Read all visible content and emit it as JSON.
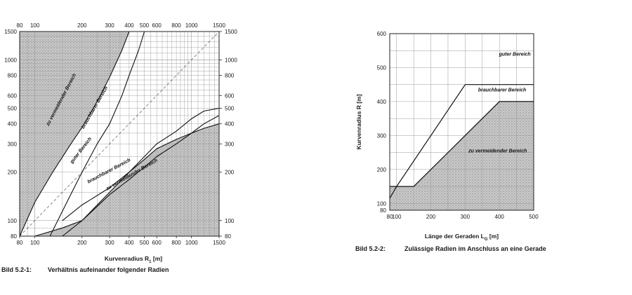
{
  "chart_data": [
    {
      "type": "area",
      "scale": "log-log",
      "xlabel": "Kurvenradius R",
      "xlabel_sub": "1",
      "xlabel_unit": " [m]",
      "ylabel": "",
      "xlim": [
        80,
        1500
      ],
      "ylim": [
        80,
        1500
      ],
      "x_ticks": [
        80,
        100,
        200,
        300,
        400,
        500,
        600,
        800,
        1000,
        1500
      ],
      "y_ticks": [
        80,
        100,
        200,
        300,
        400,
        500,
        600,
        800,
        1000,
        1500
      ],
      "grid": true,
      "caption_number": "Bild 5.2-1:",
      "caption_text": "Verhältnis aufeinander folgender Radien",
      "regions": [
        {
          "label": "zu vermeidender Bereich"
        },
        {
          "label": "brauchbarer Bereich"
        },
        {
          "label": "guter Bereich"
        },
        {
          "label": "brauchbarer Bereich"
        },
        {
          "label": "zu vermeidender Bereich"
        }
      ],
      "curves": [
        {
          "x": [
            80,
            100,
            130,
            170,
            200,
            250,
            300,
            360,
            400
          ],
          "y": [
            80,
            130,
            200,
            300,
            380,
            550,
            780,
            1150,
            1500
          ]
        },
        {
          "x": [
            125,
            160,
            200,
            250,
            300,
            360,
            400,
            460,
            500
          ],
          "y": [
            80,
            130,
            200,
            300,
            400,
            600,
            800,
            1150,
            1500
          ]
        },
        {
          "x": [
            150,
            200,
            300,
            400,
            500,
            600,
            800,
            1000,
            1200,
            1500
          ],
          "y": [
            80,
            100,
            145,
            180,
            215,
            250,
            300,
            350,
            400,
            450
          ]
        },
        {
          "x": [
            150,
            200,
            300,
            400,
            500,
            600,
            800,
            1000,
            1200,
            1500
          ],
          "y": [
            100,
            125,
            160,
            200,
            250,
            300,
            360,
            430,
            480,
            500
          ]
        },
        {
          "x": [
            80,
            100,
            150,
            200,
            300,
            400,
            500,
            600,
            800,
            1000,
            1200,
            1500
          ],
          "y": [
            80,
            80,
            90,
            100,
            150,
            200,
            240,
            280,
            320,
            350,
            375,
            400
          ]
        }
      ],
      "equal_line": {
        "x": [
          80,
          1500
        ],
        "y": [
          80,
          1500
        ]
      }
    },
    {
      "type": "area",
      "xlabel": "Länge der Geraden L",
      "xlabel_sub": "G",
      "xlabel_unit": " [m]",
      "ylabel": "Kurvenradius R [m]",
      "xlim": [
        80,
        500
      ],
      "ylim": [
        80,
        600
      ],
      "x_ticks": [
        80,
        100,
        200,
        300,
        400,
        500
      ],
      "y_ticks": [
        80,
        100,
        200,
        300,
        400,
        500,
        600
      ],
      "grid": true,
      "caption_number": "Bild 5.2-2:",
      "caption_text": "Zulässige Radien im Anschluss an eine Gerade",
      "regions": [
        {
          "label": "guter Bereich"
        },
        {
          "label": "brauchbarer Bereich"
        },
        {
          "label": "zu vermeidender Bereich"
        }
      ],
      "upper_boundary": {
        "x": [
          80,
          100,
          300,
          500
        ],
        "y": [
          115,
          150,
          450,
          450
        ]
      },
      "lower_boundary": {
        "x": [
          80,
          150,
          200,
          400,
          500
        ],
        "y": [
          150,
          150,
          200,
          400,
          400
        ]
      }
    }
  ]
}
